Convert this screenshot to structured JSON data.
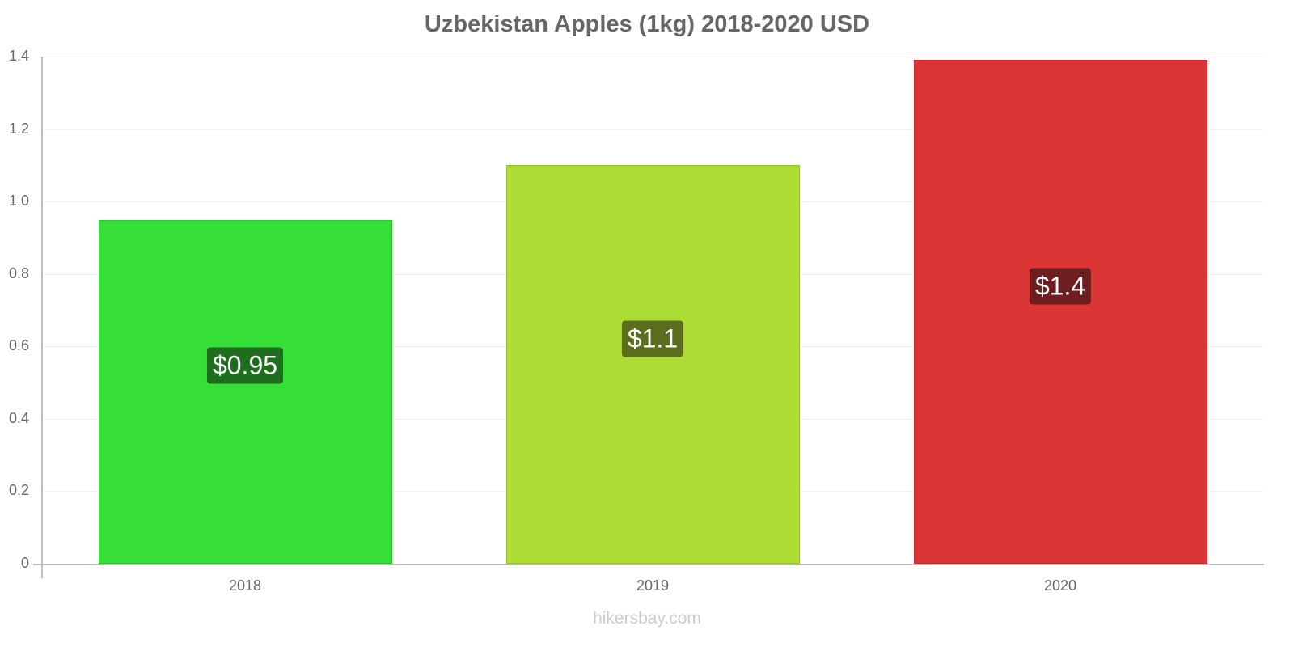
{
  "chart_data": {
    "type": "bar",
    "title": "Uzbekistan Apples (1kg) 2018-2020 USD",
    "categories": [
      "2018",
      "2019",
      "2020"
    ],
    "values": [
      0.95,
      1.1,
      1.39
    ],
    "data_labels": [
      "$0.95",
      "$1.1",
      "$1.4"
    ],
    "bar_colors": [
      "#36df38",
      "#addd35",
      "#db3535"
    ],
    "label_bg_colors": [
      "#1e6e1e",
      "#5a6e1e",
      "#6e1e1e"
    ],
    "xlabel": "",
    "ylabel": "",
    "ylim": [
      0,
      1.4
    ],
    "yticks": [
      "0",
      "0.2",
      "0.4",
      "0.6",
      "0.8",
      "1.0",
      "1.2",
      "1.4"
    ],
    "grid": true,
    "legend": null
  },
  "footer": {
    "source": "hikersbay.com"
  }
}
